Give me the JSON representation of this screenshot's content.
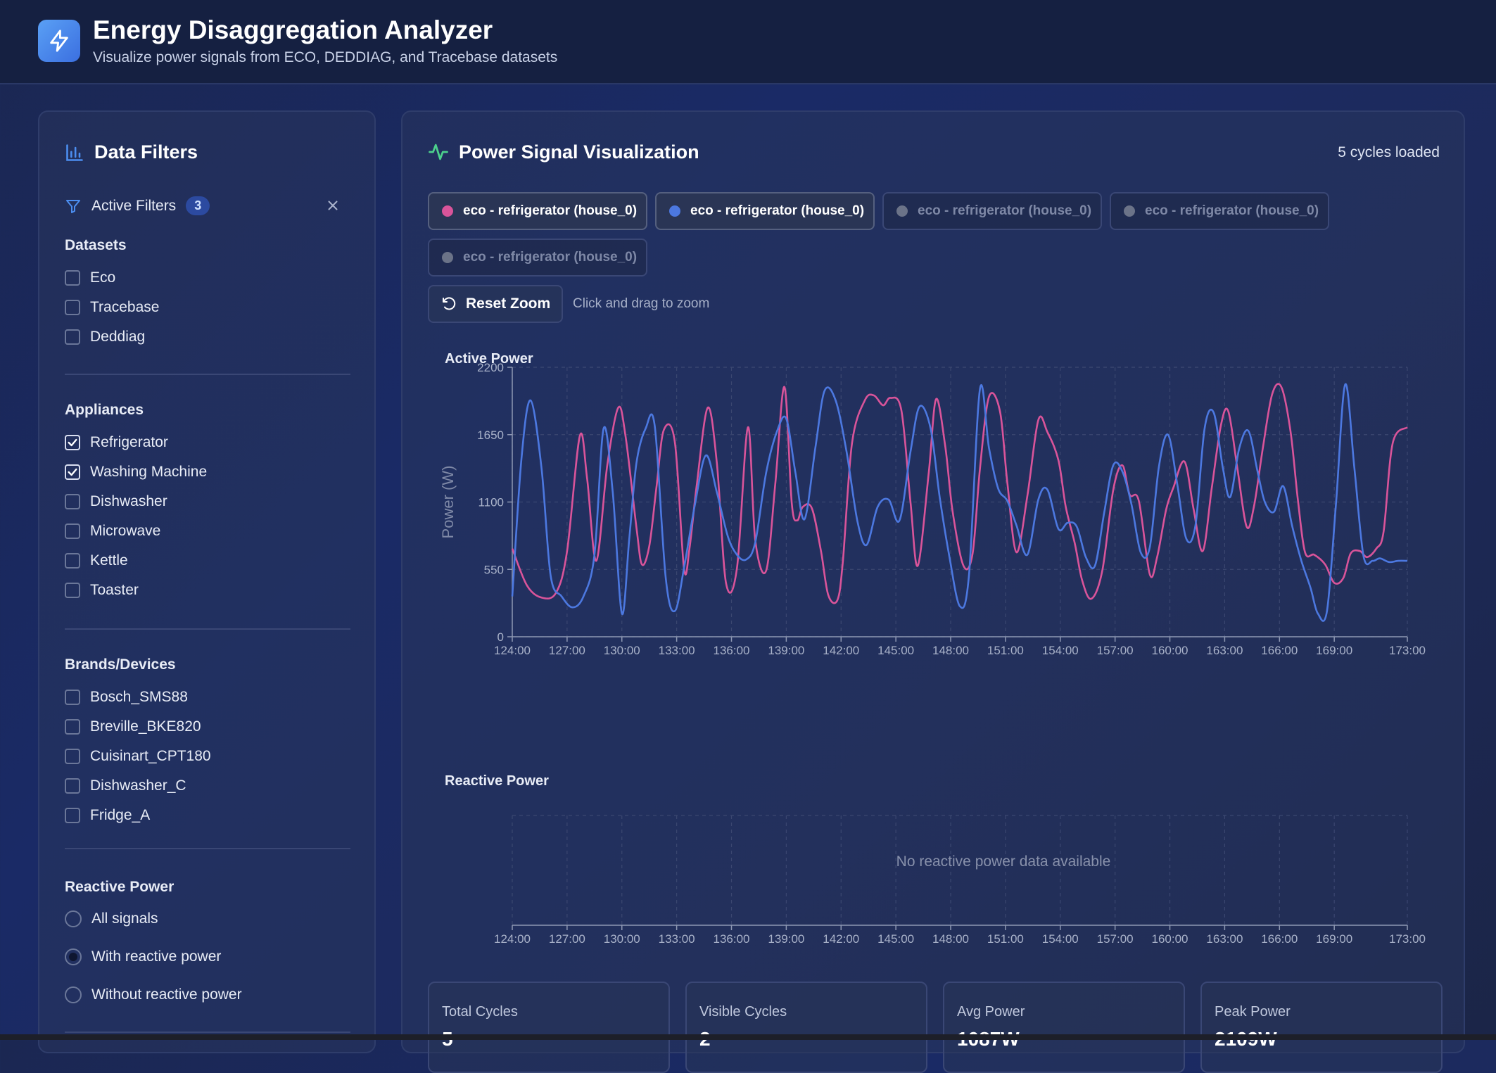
{
  "header": {
    "title": "Energy Disaggregation Analyzer",
    "subtitle": "Visualize power signals from ECO, DEDDIAG, and Tracebase datasets"
  },
  "colors": {
    "series1": "#d9549a",
    "series2": "#4c78e0",
    "inactive": "#6b7388",
    "accent_green": "#4cd08c",
    "accent_blue": "#4c8ef0"
  },
  "filters": {
    "title": "Data Filters",
    "active_label": "Active Filters",
    "active_count": "3",
    "datasets": {
      "label": "Datasets",
      "items": [
        {
          "label": "Eco",
          "checked": false
        },
        {
          "label": "Tracebase",
          "checked": false
        },
        {
          "label": "Deddiag",
          "checked": false
        }
      ]
    },
    "appliances": {
      "label": "Appliances",
      "items": [
        {
          "label": "Refrigerator",
          "checked": true
        },
        {
          "label": "Washing Machine",
          "checked": true
        },
        {
          "label": "Dishwasher",
          "checked": false
        },
        {
          "label": "Microwave",
          "checked": false
        },
        {
          "label": "Kettle",
          "checked": false
        },
        {
          "label": "Toaster",
          "checked": false
        }
      ]
    },
    "brands": {
      "label": "Brands/Devices",
      "items": [
        {
          "label": "Bosch_SMS88",
          "checked": false
        },
        {
          "label": "Breville_BKE820",
          "checked": false
        },
        {
          "label": "Cuisinart_CPT180",
          "checked": false
        },
        {
          "label": "Dishwasher_C",
          "checked": false
        },
        {
          "label": "Fridge_A",
          "checked": false
        }
      ]
    },
    "reactive": {
      "label": "Reactive Power",
      "options": [
        {
          "label": "All signals",
          "selected": false
        },
        {
          "label": "With reactive power",
          "selected": true
        },
        {
          "label": "Without reactive power",
          "selected": false
        }
      ]
    }
  },
  "viz": {
    "title": "Power Signal Visualization",
    "cycles_loaded": "5 cycles loaded",
    "chips": [
      {
        "label": "eco - refrigerator (house_0)",
        "active": true,
        "color": "#d9549a"
      },
      {
        "label": "eco - refrigerator (house_0)",
        "active": true,
        "color": "#4c78e0"
      },
      {
        "label": "eco - refrigerator (house_0)",
        "active": false,
        "color": "#6b7388"
      },
      {
        "label": "eco - refrigerator (house_0)",
        "active": false,
        "color": "#6b7388"
      },
      {
        "label": "eco - refrigerator (house_0)",
        "active": false,
        "color": "#6b7388"
      }
    ],
    "reset_zoom": "Reset Zoom",
    "zoom_hint": "Click and drag to zoom",
    "reactive_label": "Reactive Power",
    "reactive_empty": "No reactive power data available"
  },
  "stats": [
    {
      "label": "Total Cycles",
      "value": "5"
    },
    {
      "label": "Visible Cycles",
      "value": "2"
    },
    {
      "label": "Avg Power",
      "value": "1087W"
    },
    {
      "label": "Peak Power",
      "value": "2109W"
    }
  ],
  "chart_data": [
    {
      "type": "line",
      "title": "Active Power",
      "ylabel": "Power (W)",
      "xlabel": "",
      "ylim": [
        0,
        2200
      ],
      "yticks": [
        0,
        550,
        1100,
        1650,
        2200
      ],
      "xticks": [
        "124:00",
        "127:00",
        "130:00",
        "133:00",
        "136:00",
        "139:00",
        "142:00",
        "145:00",
        "148:00",
        "151:00",
        "154:00",
        "157:00",
        "160:00",
        "163:00",
        "166:00",
        "169:00",
        "173:00"
      ],
      "xrange": [
        124,
        173
      ],
      "grid": true,
      "series": [
        {
          "color": "#d9549a",
          "x": [
            124,
            124.8,
            125.6,
            126.4,
            127,
            127.7,
            128.1,
            128.6,
            129.2,
            129.8,
            130.2,
            130.8,
            131.1,
            131.5,
            131.9,
            132.3,
            132.9,
            133.4,
            133.7,
            134.1,
            134.7,
            135.2,
            135.7,
            136.3,
            136.9,
            137.3,
            137.9,
            138.4,
            138.9,
            139.3,
            139.6,
            139.9,
            140.4,
            140.9,
            141.3,
            141.8,
            142.1,
            142.6,
            143.3,
            143.8,
            144.3,
            144.7,
            145.3,
            145.8,
            146.2,
            146.8,
            147.2,
            147.7,
            148.1,
            148.7,
            149.2,
            149.6,
            150.1,
            150.7,
            151.1,
            151.6,
            152.2,
            152.8,
            153.3,
            153.9,
            154.3,
            154.8,
            155.2,
            155.7,
            156.3,
            156.9,
            157.4,
            157.8,
            158.3,
            158.9,
            159.3,
            159.8,
            160.2,
            160.8,
            161.3,
            161.8,
            162.3,
            162.8,
            163.2,
            163.7,
            164.2,
            164.6,
            165.1,
            165.6,
            166.1,
            166.6,
            167,
            167.4,
            167.9,
            168.5,
            169,
            169.5,
            169.9,
            170.4,
            170.8,
            171.3,
            171.7,
            172.2,
            173
          ],
          "y": [
            720,
            420,
            320,
            360,
            700,
            1640,
            1290,
            620,
            1400,
            1870,
            1640,
            890,
            590,
            740,
            1230,
            1690,
            1590,
            560,
            720,
            1240,
            1870,
            1420,
            440,
            560,
            1710,
            790,
            540,
            1250,
            2040,
            1090,
            950,
            1060,
            1050,
            700,
            340,
            300,
            620,
            1580,
            1930,
            1970,
            1890,
            1950,
            1850,
            1100,
            580,
            1340,
            1940,
            1560,
            1030,
            580,
            680,
            1370,
            1960,
            1840,
            1260,
            690,
            1150,
            1770,
            1670,
            1440,
            1060,
            760,
            460,
            310,
            540,
            1200,
            1400,
            1160,
            1110,
            510,
            650,
            1040,
            1220,
            1430,
            1040,
            700,
            1220,
            1730,
            1840,
            1370,
            900,
            1060,
            1550,
            1980,
            2040,
            1680,
            1130,
            690,
            670,
            590,
            440,
            480,
            680,
            700,
            650,
            720,
            860,
            1580,
            1710
          ]
        },
        {
          "color": "#4c78e0",
          "x": [
            124,
            124.5,
            125,
            125.6,
            126.1,
            126.7,
            127.3,
            127.9,
            128.5,
            129,
            129.5,
            130,
            130.4,
            130.8,
            131.3,
            131.8,
            132.4,
            132.9,
            133.4,
            134,
            134.6,
            135.2,
            135.8,
            136.3,
            136.8,
            137.3,
            137.9,
            138.5,
            139,
            139.5,
            140,
            140.6,
            141.1,
            141.7,
            142.3,
            142.9,
            143.4,
            144,
            144.6,
            145.2,
            145.8,
            146.3,
            146.9,
            147.4,
            147.9,
            148.5,
            149,
            149.6,
            150.1,
            150.6,
            151.1,
            151.6,
            152.2,
            152.8,
            153.3,
            153.9,
            154.4,
            154.9,
            155.4,
            155.9,
            156.4,
            156.9,
            157.4,
            157.9,
            158.4,
            158.9,
            159.4,
            159.9,
            160.4,
            160.9,
            161.4,
            161.9,
            162.4,
            162.9,
            163.3,
            163.8,
            164.3,
            164.8,
            165.2,
            165.7,
            166.2,
            166.7,
            167.2,
            167.7,
            168.1,
            168.6,
            169.1,
            169.6,
            170.1,
            170.6,
            171.1,
            171.5,
            172,
            172.5,
            173
          ],
          "y": [
            330,
            1450,
            1930,
            1380,
            500,
            330,
            240,
            330,
            670,
            1700,
            1180,
            190,
            790,
            1420,
            1700,
            1720,
            480,
            210,
            560,
            1080,
            1480,
            1180,
            820,
            670,
            630,
            770,
            1340,
            1680,
            1780,
            1340,
            960,
            1550,
            2010,
            1930,
            1510,
            940,
            750,
            1060,
            1120,
            950,
            1510,
            1880,
            1700,
            1140,
            680,
            250,
            500,
            2020,
            1540,
            1210,
            1110,
            910,
            670,
            1120,
            1200,
            880,
            930,
            900,
            650,
            580,
            1010,
            1400,
            1350,
            1080,
            690,
            730,
            1390,
            1650,
            1250,
            800,
            910,
            1700,
            1830,
            1380,
            1140,
            1540,
            1680,
            1350,
            1100,
            1020,
            1230,
            900,
            620,
            400,
            190,
            210,
            1100,
            2060,
            1380,
            660,
            620,
            640,
            610,
            620,
            620
          ]
        }
      ]
    },
    {
      "type": "line",
      "title": "Reactive Power",
      "xticks": [
        "124:00",
        "127:00",
        "130:00",
        "133:00",
        "136:00",
        "139:00",
        "142:00",
        "145:00",
        "148:00",
        "151:00",
        "154:00",
        "157:00",
        "160:00",
        "163:00",
        "166:00",
        "169:00",
        "173:00"
      ],
      "xrange": [
        124,
        173
      ],
      "series": []
    }
  ]
}
